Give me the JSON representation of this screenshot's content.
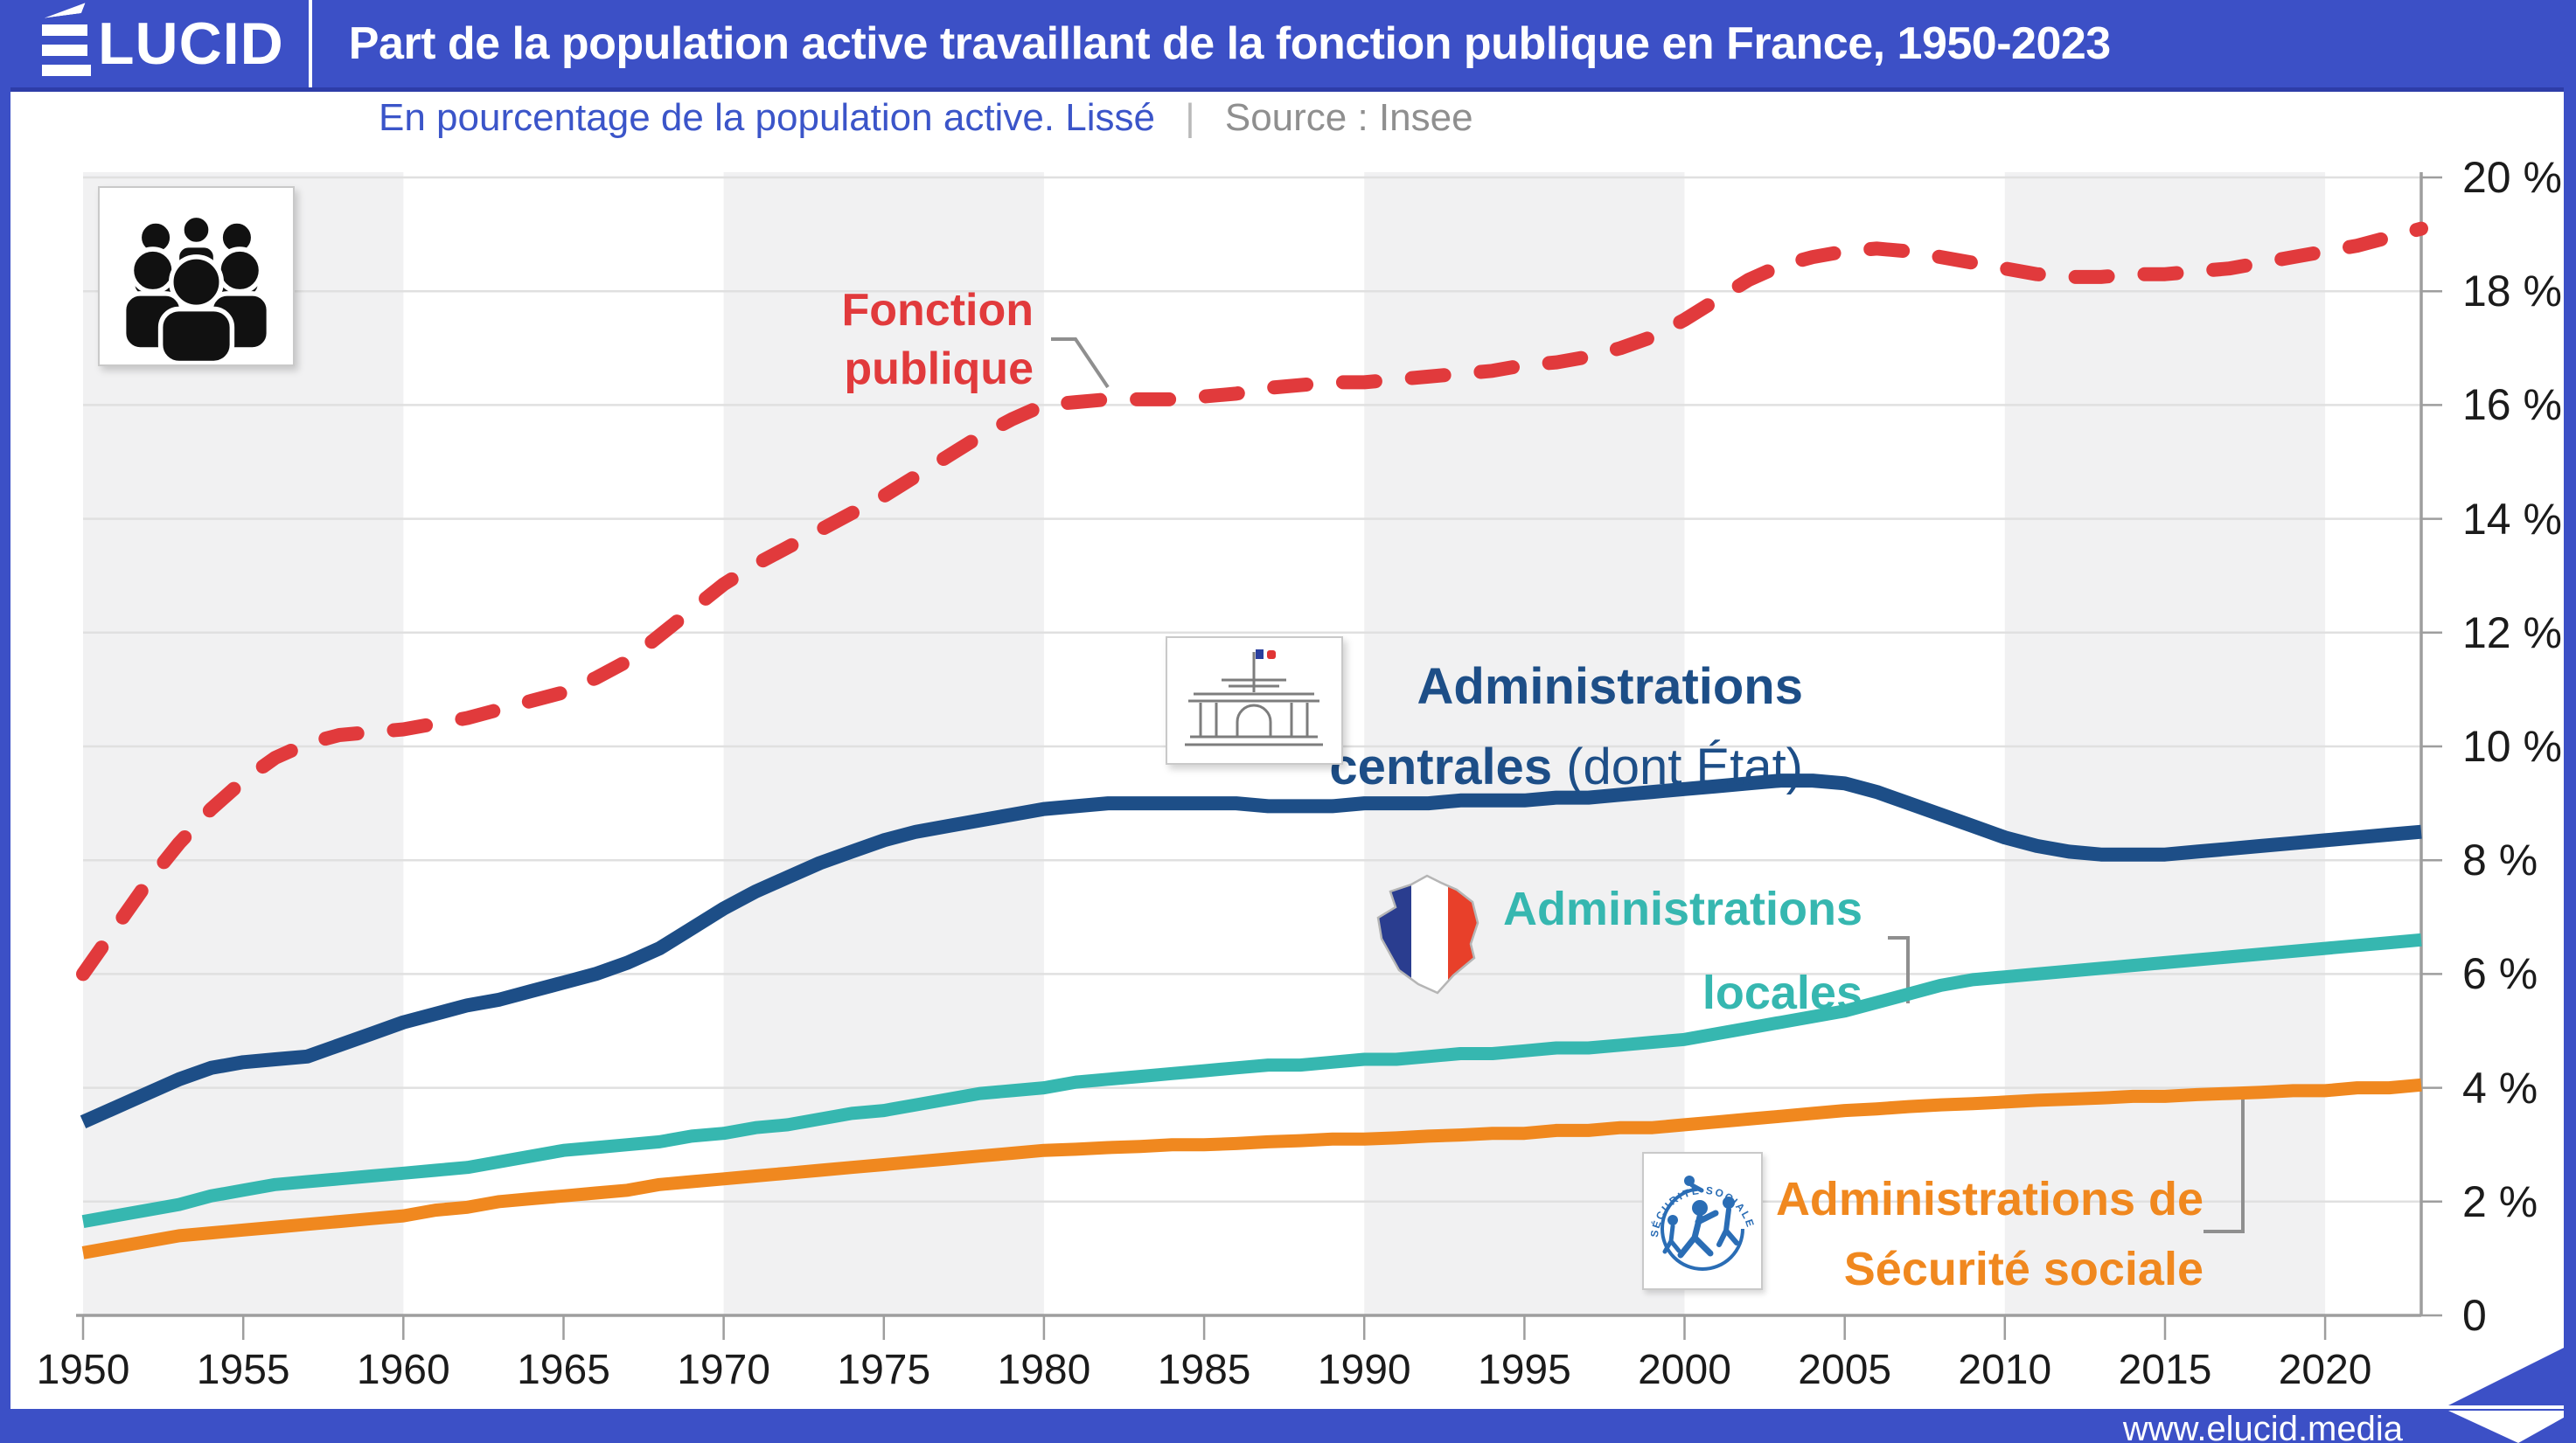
{
  "header": {
    "logo_text": "LUCID",
    "logo_full": "ÉLUCID",
    "title": "Part de la population active travaillant de la fonction publique en France, 1950-2023"
  },
  "subtitle": {
    "text": "En pourcentage de la population active. Lissé",
    "separator": "|",
    "source": "Source : Insee"
  },
  "footer": {
    "url": "www.elucid.media"
  },
  "colors": {
    "frame_blue": "#3c50c6",
    "subtitle_blue": "#3b55c9",
    "subtitle_gray": "#8f8f8f",
    "red": "#e13a3c",
    "dark_blue": "#1d4e87",
    "teal": "#36b7b0",
    "orange": "#f0881f",
    "grid": "#e0e0e0",
    "stripe": "#f1f1f2",
    "axis": "#9e9e9e",
    "leader": "#8f8f8f",
    "tick_label": "#1b1b1b"
  },
  "icons": {
    "crowd": "crowd-of-people-icon",
    "parliament": "assemblee-nationale-building-icon",
    "france": "france-map-tricolor-icon",
    "secu": "securite-sociale-logo-icon",
    "flag": "elucid-flag-icon"
  },
  "series_labels": {
    "fp": {
      "line1": "Fonction",
      "line2": "publique"
    },
    "ac": {
      "line1": "Administrations",
      "line2_bold": "centrales",
      "line2_rest": " (dont État)"
    },
    "al": {
      "line1": "Administrations",
      "line2": "locales"
    },
    "ss": {
      "line1": "Administrations de",
      "line2": "Sécurité sociale"
    }
  },
  "y_axis": {
    "labels": [
      "20 %",
      "18 %",
      "16 %",
      "14 %",
      "12 %",
      "10 %",
      "8 %",
      "6 %",
      "4 %",
      "2 %",
      "0"
    ],
    "values": [
      20,
      18,
      16,
      14,
      12,
      10,
      8,
      6,
      4,
      2,
      0
    ]
  },
  "x_axis": {
    "ticks": [
      1950,
      1955,
      1960,
      1965,
      1970,
      1975,
      1980,
      1985,
      1990,
      1995,
      2000,
      2005,
      2010,
      2015,
      2020
    ]
  },
  "chart_data": {
    "type": "line",
    "title": "Part de la population active travaillant de la fonction publique en France, 1950-2023",
    "subtitle": "En pourcentage de la population active. Lissé",
    "source": "Source : Insee",
    "xlabel": "",
    "ylabel": "% de la population active",
    "ylim": [
      0,
      20
    ],
    "xlim": [
      1950,
      2023
    ],
    "grid": "horizontal gridlines every 2%; alternating light-gray decade stripes (1950-60, 1970-80, 1990-2000, 2010-20)",
    "legend_position": "labels next to curves",
    "year_start": 1950,
    "year_step": 1,
    "series": [
      {
        "name": "Fonction publique",
        "color": "#e13a3c",
        "style": "dashed",
        "values": [
          6.0,
          6.8,
          7.6,
          8.3,
          8.9,
          9.4,
          9.8,
          10.05,
          10.2,
          10.25,
          10.3,
          10.4,
          10.5,
          10.65,
          10.8,
          10.95,
          11.2,
          11.5,
          11.95,
          12.4,
          12.85,
          13.2,
          13.5,
          13.8,
          14.1,
          14.4,
          14.75,
          15.1,
          15.45,
          15.75,
          16.0,
          16.05,
          16.1,
          16.1,
          16.1,
          16.15,
          16.2,
          16.3,
          16.35,
          16.4,
          16.4,
          16.45,
          16.5,
          16.55,
          16.6,
          16.7,
          16.75,
          16.85,
          17.0,
          17.2,
          17.5,
          17.85,
          18.2,
          18.45,
          18.6,
          18.7,
          18.75,
          18.7,
          18.6,
          18.5,
          18.4,
          18.3,
          18.25,
          18.25,
          18.3,
          18.3,
          18.35,
          18.4,
          18.5,
          18.6,
          18.7,
          18.8,
          18.95,
          19.1
        ]
      },
      {
        "name": "Administrations centrales (dont État)",
        "color": "#1d4e87",
        "style": "solid",
        "values": [
          3.4,
          3.65,
          3.9,
          4.15,
          4.35,
          4.45,
          4.5,
          4.55,
          4.75,
          4.95,
          5.15,
          5.3,
          5.45,
          5.55,
          5.7,
          5.85,
          6.0,
          6.2,
          6.45,
          6.8,
          7.15,
          7.45,
          7.7,
          7.95,
          8.15,
          8.35,
          8.5,
          8.6,
          8.7,
          8.8,
          8.9,
          8.95,
          9.0,
          9.0,
          9.0,
          9.0,
          9.0,
          8.95,
          8.95,
          8.95,
          9.0,
          9.0,
          9.0,
          9.05,
          9.05,
          9.05,
          9.1,
          9.1,
          9.15,
          9.2,
          9.25,
          9.3,
          9.35,
          9.4,
          9.4,
          9.35,
          9.2,
          9.0,
          8.8,
          8.6,
          8.4,
          8.25,
          8.15,
          8.1,
          8.1,
          8.1,
          8.15,
          8.2,
          8.25,
          8.3,
          8.35,
          8.4,
          8.45,
          8.5
        ]
      },
      {
        "name": "Administrations locales",
        "color": "#36b7b0",
        "style": "solid",
        "values": [
          1.65,
          1.75,
          1.85,
          1.95,
          2.1,
          2.2,
          2.3,
          2.35,
          2.4,
          2.45,
          2.5,
          2.55,
          2.6,
          2.7,
          2.8,
          2.9,
          2.95,
          3.0,
          3.05,
          3.15,
          3.2,
          3.3,
          3.35,
          3.45,
          3.55,
          3.6,
          3.7,
          3.8,
          3.9,
          3.95,
          4.0,
          4.1,
          4.15,
          4.2,
          4.25,
          4.3,
          4.35,
          4.4,
          4.4,
          4.45,
          4.5,
          4.5,
          4.55,
          4.6,
          4.6,
          4.65,
          4.7,
          4.7,
          4.75,
          4.8,
          4.85,
          4.95,
          5.05,
          5.15,
          5.25,
          5.35,
          5.5,
          5.65,
          5.8,
          5.9,
          5.95,
          6.0,
          6.05,
          6.1,
          6.15,
          6.2,
          6.25,
          6.3,
          6.35,
          6.4,
          6.45,
          6.5,
          6.55,
          6.6
        ]
      },
      {
        "name": "Administrations de Sécurité sociale",
        "color": "#f0881f",
        "style": "solid",
        "values": [
          1.1,
          1.2,
          1.3,
          1.4,
          1.45,
          1.5,
          1.55,
          1.6,
          1.65,
          1.7,
          1.75,
          1.85,
          1.9,
          2.0,
          2.05,
          2.1,
          2.15,
          2.2,
          2.3,
          2.35,
          2.4,
          2.45,
          2.5,
          2.55,
          2.6,
          2.65,
          2.7,
          2.75,
          2.8,
          2.85,
          2.9,
          2.92,
          2.95,
          2.97,
          3.0,
          3.0,
          3.02,
          3.05,
          3.07,
          3.1,
          3.1,
          3.12,
          3.15,
          3.17,
          3.2,
          3.2,
          3.25,
          3.25,
          3.3,
          3.3,
          3.35,
          3.4,
          3.45,
          3.5,
          3.55,
          3.6,
          3.63,
          3.67,
          3.7,
          3.72,
          3.75,
          3.78,
          3.8,
          3.82,
          3.85,
          3.85,
          3.88,
          3.9,
          3.92,
          3.95,
          3.95,
          4.0,
          4.0,
          4.05
        ]
      }
    ],
    "decade_stripes": [
      1950,
      1970,
      1990,
      2010
    ]
  }
}
